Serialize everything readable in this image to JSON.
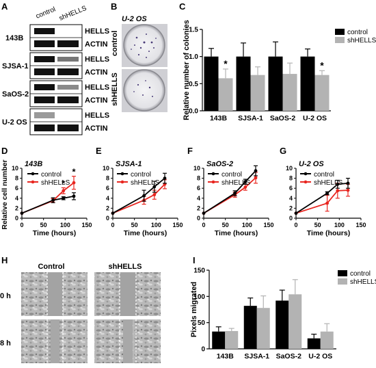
{
  "panels": {
    "A": {
      "letter": "A",
      "headers": [
        "control",
        "shHELLS"
      ],
      "cell_lines": [
        "143B",
        "SJSA-1",
        "SaOS-2",
        "U-2 OS"
      ],
      "bands": [
        "HELLS",
        "ACTIN"
      ]
    },
    "B": {
      "letter": "B",
      "title": "U-2 OS",
      "rows": [
        "control",
        "shHELLS"
      ]
    },
    "H": {
      "letter": "H",
      "cols": [
        "Control",
        "shHELLS"
      ],
      "rows": [
        "0 h",
        "8 h"
      ]
    }
  },
  "legend": {
    "control": "control",
    "shHELLS": "shHELLS"
  },
  "colors": {
    "control_bar": "#000000",
    "shHELLS_bar": "#b3b3b3",
    "control_line": "#000000",
    "shHELLS_line": "#e8251f"
  },
  "chart_data": [
    {
      "panel": "C",
      "type": "bar",
      "categories": [
        "143B",
        "SJSA-1",
        "SaOS-2",
        "U-2 OS"
      ],
      "series": [
        {
          "name": "control",
          "values": [
            1.0,
            1.0,
            1.0,
            1.0
          ],
          "errors": [
            0.15,
            0.25,
            0.27,
            0.14
          ]
        },
        {
          "name": "shHELLS",
          "values": [
            0.6,
            0.66,
            0.68,
            0.66
          ],
          "errors": [
            0.17,
            0.15,
            0.2,
            0.08
          ]
        }
      ],
      "significance": [
        "*",
        "",
        "",
        "*"
      ],
      "ylabel": "Relative number of colonies",
      "ylim": [
        0,
        1.5
      ],
      "yticks": [
        "0.0",
        "0.5",
        "1.0",
        "1.5"
      ],
      "legend": "top-right"
    },
    {
      "panel": "D",
      "type": "line",
      "title": "143B",
      "x": [
        0,
        72,
        96,
        120
      ],
      "series": [
        {
          "name": "control",
          "values": [
            1.0,
            3.6,
            4.0,
            4.4
          ],
          "errors": [
            0,
            0.5,
            0.3,
            0.7
          ]
        },
        {
          "name": "shHELLS",
          "values": [
            1.0,
            3.5,
            5.5,
            7.1
          ],
          "errors": [
            0,
            0.4,
            0.6,
            1.3
          ]
        }
      ],
      "annotations": [
        "*",
        "*"
      ],
      "xlabel": "Time (hours)",
      "ylabel": "Relative cell number",
      "xlim": [
        0,
        150
      ],
      "ylim": [
        0,
        10
      ],
      "xticks": [
        "0",
        "50",
        "100",
        "150"
      ],
      "yticks": [
        "0",
        "2",
        "4",
        "6",
        "8",
        "10"
      ]
    },
    {
      "panel": "E",
      "type": "line",
      "title": "SJSA-1",
      "x": [
        0,
        72,
        96,
        120
      ],
      "series": [
        {
          "name": "control",
          "values": [
            1.0,
            4.5,
            6.3,
            8.0
          ],
          "errors": [
            0,
            1.1,
            1.1,
            1.0
          ]
        },
        {
          "name": "shHELLS",
          "values": [
            1.0,
            3.6,
            4.7,
            6.8
          ],
          "errors": [
            0,
            0.8,
            0.9,
            0.9
          ]
        }
      ],
      "xlabel": "Time (hours)",
      "xlim": [
        0,
        150
      ],
      "ylim": [
        0,
        10
      ],
      "xticks": [
        "0",
        "50",
        "100",
        "150"
      ],
      "yticks": [
        "0",
        "2",
        "4",
        "6",
        "8",
        "10"
      ]
    },
    {
      "panel": "F",
      "type": "line",
      "title": "SaOS-2",
      "x": [
        0,
        72,
        96,
        120
      ],
      "series": [
        {
          "name": "control",
          "values": [
            1.0,
            5.0,
            7.3,
            9.5
          ],
          "errors": [
            0,
            0.5,
            0.5,
            1.0
          ]
        },
        {
          "name": "shHELLS",
          "values": [
            1.0,
            4.7,
            6.2,
            8.1
          ],
          "errors": [
            0,
            0.5,
            0.6,
            1.1
          ]
        }
      ],
      "xlabel": "Time (hours)",
      "xlim": [
        0,
        150
      ],
      "ylim": [
        0,
        10
      ],
      "xticks": [
        "0",
        "50",
        "100",
        "150"
      ],
      "yticks": [
        "0",
        "2",
        "4",
        "6",
        "8",
        "10"
      ]
    },
    {
      "panel": "G",
      "type": "line",
      "title": "U-2 OS",
      "x": [
        0,
        72,
        96,
        120
      ],
      "series": [
        {
          "name": "control",
          "values": [
            1.0,
            5.0,
            6.8,
            7.0
          ],
          "errors": [
            0,
            0.3,
            0.8,
            1.0
          ]
        },
        {
          "name": "shHELLS",
          "values": [
            1.0,
            3.0,
            5.5,
            5.6
          ],
          "errors": [
            0,
            1.6,
            1.5,
            1.2
          ]
        }
      ],
      "xlabel": "Time (hours)",
      "xlim": [
        0,
        150
      ],
      "ylim": [
        0,
        10
      ],
      "xticks": [
        "0",
        "50",
        "100",
        "150"
      ],
      "yticks": [
        "0",
        "2",
        "4",
        "6",
        "8",
        "10"
      ]
    },
    {
      "panel": "I",
      "type": "bar",
      "categories": [
        "143B",
        "SJSA-1",
        "SaOS-2",
        "U-2 OS"
      ],
      "series": [
        {
          "name": "control",
          "values": [
            33,
            82,
            92,
            20
          ],
          "errors": [
            9,
            15,
            20,
            8
          ]
        },
        {
          "name": "shHELLS",
          "values": [
            34,
            78,
            104,
            33
          ],
          "errors": [
            5,
            23,
            28,
            15
          ]
        }
      ],
      "ylabel": "Pixels migrated",
      "ylim": [
        0,
        150
      ],
      "yticks": [
        "0",
        "50",
        "100",
        "150"
      ],
      "legend": "top-right"
    }
  ]
}
